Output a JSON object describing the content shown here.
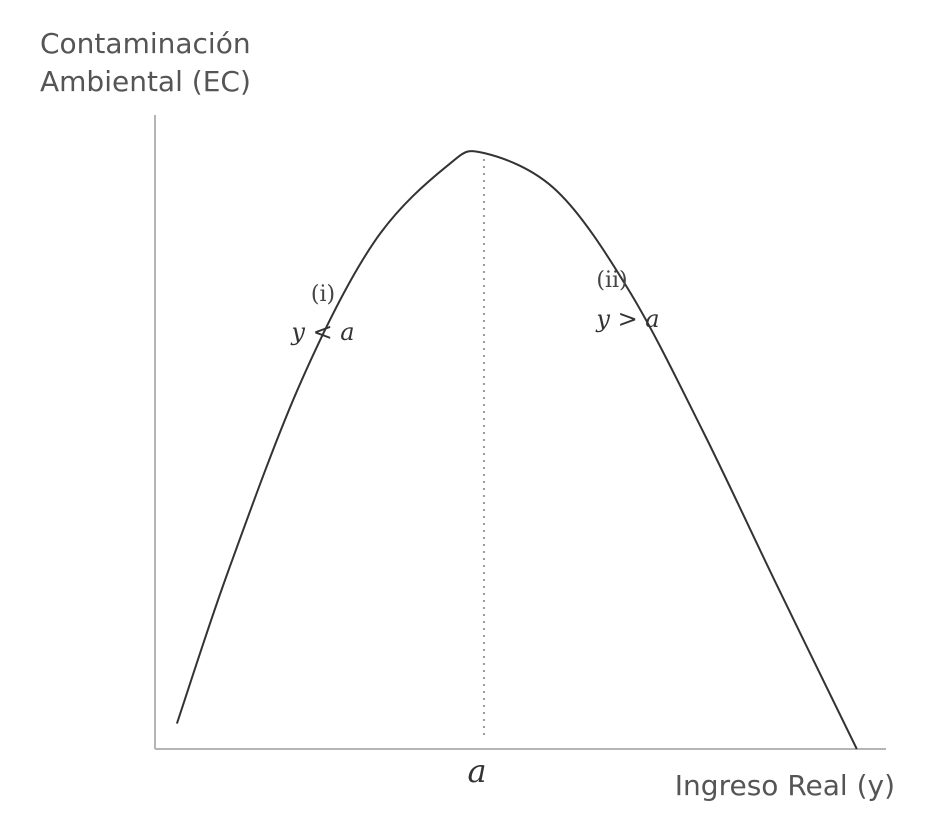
{
  "chart_data": {
    "type": "line",
    "title": "",
    "ylabel": [
      "Contaminación",
      "Ambiental (EC)"
    ],
    "xlabel": "Ingreso Real (y)",
    "x_tick_label": "a",
    "grid": false,
    "legend": "none",
    "peak_x": 0.45,
    "xlim": [
      0,
      1
    ],
    "ylim": [
      0,
      1
    ],
    "series": [
      {
        "x": [
          0.03,
          0.1,
          0.2,
          0.3,
          0.4,
          0.45,
          0.55,
          0.65,
          0.75,
          0.85,
          0.96
        ],
        "values": [
          0.04,
          0.28,
          0.58,
          0.8,
          0.92,
          0.94,
          0.88,
          0.72,
          0.5,
          0.26,
          0.0
        ]
      }
    ],
    "annotations": [
      {
        "number": "(i)",
        "condition": "y < a"
      },
      {
        "number": "(ii)",
        "condition": "y > a"
      }
    ],
    "colors": {
      "axis": "#b5b5b5",
      "curve": "#333333",
      "guide": "#999999"
    }
  }
}
